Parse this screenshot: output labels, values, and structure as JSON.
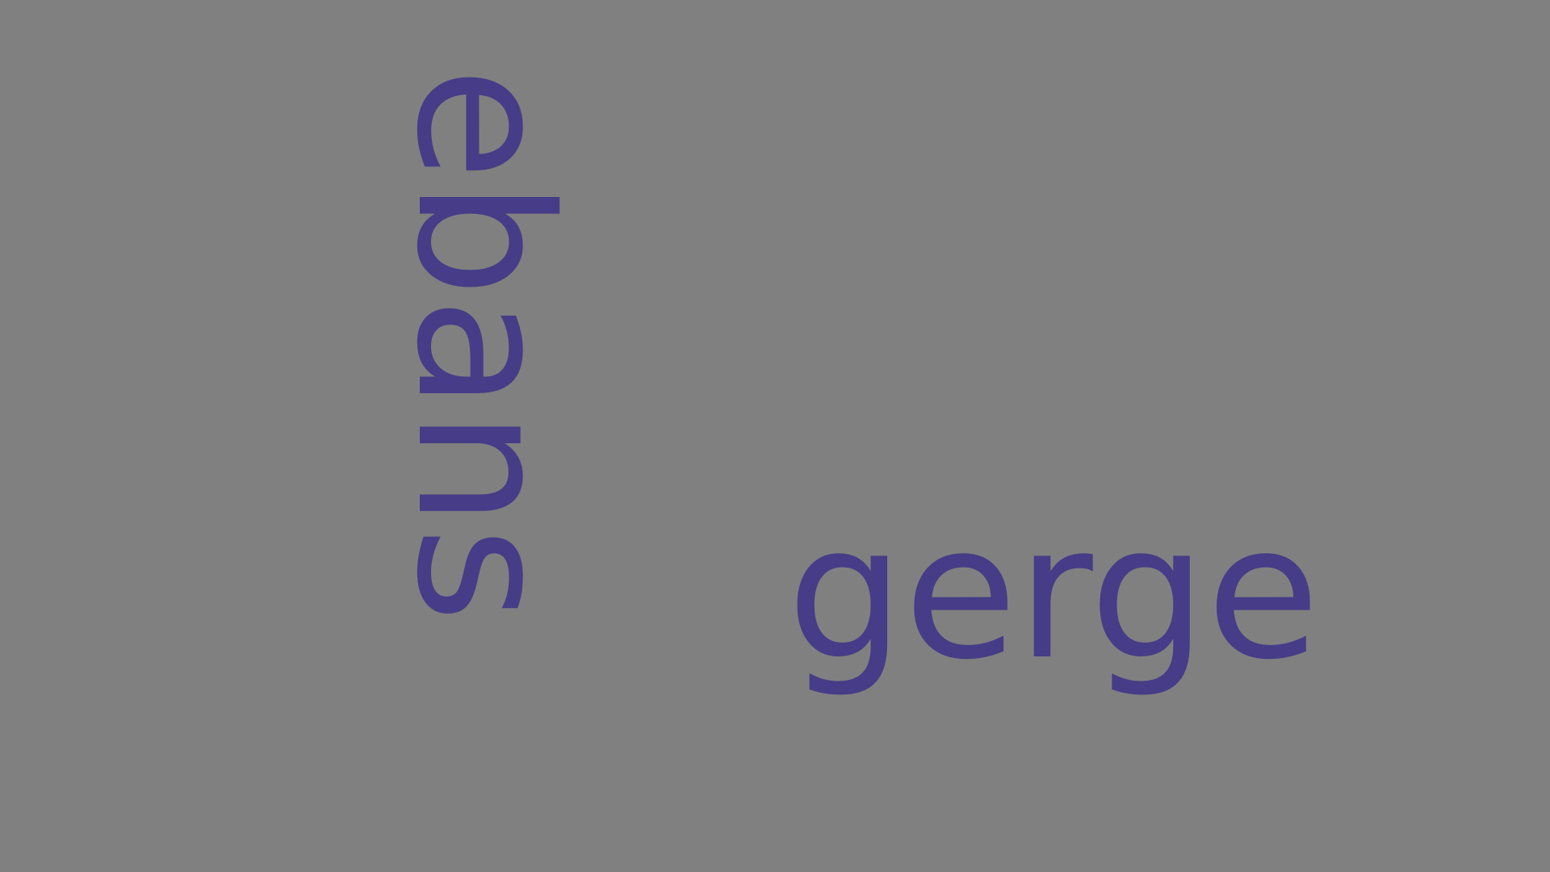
{
  "words": {
    "vertical": "ebans",
    "horizontal": "gerge"
  },
  "colors": {
    "background": "#808080",
    "text": "#463c87"
  }
}
